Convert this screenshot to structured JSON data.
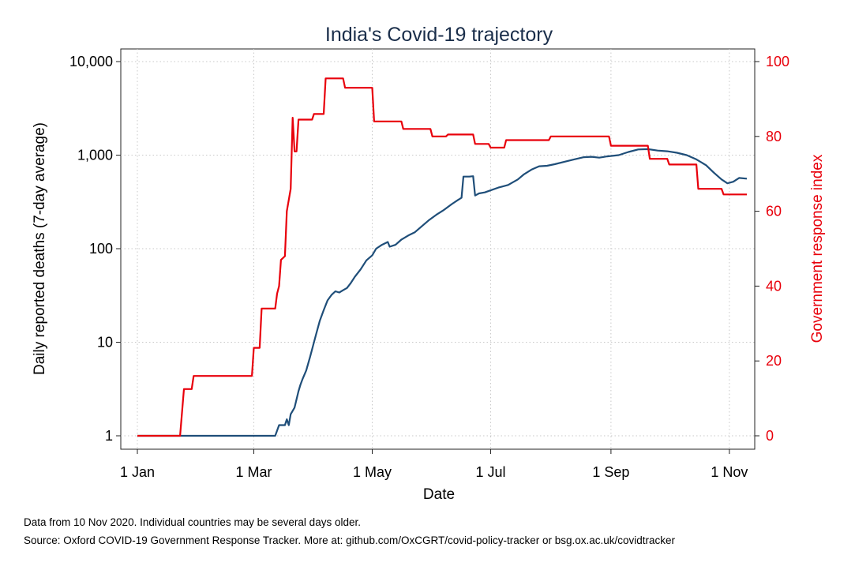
{
  "chart_data": {
    "type": "line",
    "title": "India's Covid-19 trajectory",
    "xlabel": "Date",
    "ylabel": "Daily reported deaths (7-day average)",
    "y2label": "Government response index",
    "x_ticks": [
      "1 Jan",
      "1 Mar",
      "1 May",
      "1 Jul",
      "1 Sep",
      "1 Nov"
    ],
    "x_tick_days": [
      0,
      60,
      121,
      182,
      244,
      305
    ],
    "y_scale": "log",
    "y_ticks": [
      "1",
      "10",
      "100",
      "1,000",
      "10,000"
    ],
    "y_tick_values": [
      1,
      10,
      100,
      1000,
      10000
    ],
    "y2_ticks": [
      "0",
      "20",
      "40",
      "60",
      "80",
      "100"
    ],
    "y2_tick_values": [
      0,
      20,
      40,
      60,
      80,
      100
    ],
    "ylim": [
      1,
      10000
    ],
    "y2lim": [
      0,
      100
    ],
    "xlim": [
      "2020-01-01",
      "2020-11-10"
    ],
    "grid": true,
    "series": [
      {
        "name": "",
        "axis": "left",
        "color": "#1f4e79",
        "points": [
          [
            "2020-01-01",
            1
          ],
          [
            "2020-03-12",
            1
          ],
          [
            "2020-03-14",
            1.3
          ],
          [
            "2020-03-17",
            1.3
          ],
          [
            "2020-03-18",
            1.5
          ],
          [
            "2020-03-19",
            1.3
          ],
          [
            "2020-03-20",
            1.7
          ],
          [
            "2020-03-22",
            2
          ],
          [
            "2020-03-24",
            3
          ],
          [
            "2020-03-25",
            3.5
          ],
          [
            "2020-03-26",
            4
          ],
          [
            "2020-03-28",
            5
          ],
          [
            "2020-03-30",
            7
          ],
          [
            "2020-04-01",
            10
          ],
          [
            "2020-04-02",
            12
          ],
          [
            "2020-04-04",
            17
          ],
          [
            "2020-04-06",
            22
          ],
          [
            "2020-04-08",
            28
          ],
          [
            "2020-04-10",
            32
          ],
          [
            "2020-04-12",
            35
          ],
          [
            "2020-04-14",
            34
          ],
          [
            "2020-04-16",
            36
          ],
          [
            "2020-04-18",
            38
          ],
          [
            "2020-04-20",
            43
          ],
          [
            "2020-04-22",
            50
          ],
          [
            "2020-04-25",
            60
          ],
          [
            "2020-04-28",
            75
          ],
          [
            "2020-05-01",
            85
          ],
          [
            "2020-05-03",
            100
          ],
          [
            "2020-05-06",
            110
          ],
          [
            "2020-05-09",
            118
          ],
          [
            "2020-05-10",
            105
          ],
          [
            "2020-05-13",
            110
          ],
          [
            "2020-05-16",
            125
          ],
          [
            "2020-05-20",
            140
          ],
          [
            "2020-05-23",
            150
          ],
          [
            "2020-05-26",
            170
          ],
          [
            "2020-05-30",
            200
          ],
          [
            "2020-06-03",
            230
          ],
          [
            "2020-06-07",
            260
          ],
          [
            "2020-06-11",
            300
          ],
          [
            "2020-06-14",
            330
          ],
          [
            "2020-06-16",
            350
          ],
          [
            "2020-06-17",
            590
          ],
          [
            "2020-06-20",
            590
          ],
          [
            "2020-06-22",
            595
          ],
          [
            "2020-06-23",
            370
          ],
          [
            "2020-06-25",
            390
          ],
          [
            "2020-06-28",
            400
          ],
          [
            "2020-07-01",
            420
          ],
          [
            "2020-07-05",
            450
          ],
          [
            "2020-07-10",
            480
          ],
          [
            "2020-07-15",
            550
          ],
          [
            "2020-07-18",
            620
          ],
          [
            "2020-07-22",
            700
          ],
          [
            "2020-07-26",
            760
          ],
          [
            "2020-07-30",
            770
          ],
          [
            "2020-08-03",
            800
          ],
          [
            "2020-08-08",
            850
          ],
          [
            "2020-08-13",
            900
          ],
          [
            "2020-08-18",
            950
          ],
          [
            "2020-08-22",
            960
          ],
          [
            "2020-08-26",
            940
          ],
          [
            "2020-08-30",
            970
          ],
          [
            "2020-09-05",
            1000
          ],
          [
            "2020-09-10",
            1080
          ],
          [
            "2020-09-15",
            1150
          ],
          [
            "2020-09-20",
            1160
          ],
          [
            "2020-09-25",
            1120
          ],
          [
            "2020-09-30",
            1100
          ],
          [
            "2020-10-05",
            1060
          ],
          [
            "2020-10-10",
            1000
          ],
          [
            "2020-10-15",
            900
          ],
          [
            "2020-10-20",
            780
          ],
          [
            "2020-10-24",
            650
          ],
          [
            "2020-10-28",
            550
          ],
          [
            "2020-10-31",
            500
          ],
          [
            "2020-11-03",
            520
          ],
          [
            "2020-11-06",
            570
          ],
          [
            "2020-11-10",
            560
          ]
        ]
      },
      {
        "name": "",
        "axis": "right",
        "color": "#e8000b",
        "points": [
          [
            "2020-01-01",
            0
          ],
          [
            "2020-01-23",
            0
          ],
          [
            "2020-01-25",
            12.5
          ],
          [
            "2020-01-29",
            12.5
          ],
          [
            "2020-01-30",
            16
          ],
          [
            "2020-02-29",
            16
          ],
          [
            "2020-03-01",
            23.5
          ],
          [
            "2020-03-04",
            23.5
          ],
          [
            "2020-03-05",
            34
          ],
          [
            "2020-03-12",
            34
          ],
          [
            "2020-03-13",
            38
          ],
          [
            "2020-03-14",
            40
          ],
          [
            "2020-03-15",
            47
          ],
          [
            "2020-03-17",
            48
          ],
          [
            "2020-03-18",
            60
          ],
          [
            "2020-03-20",
            66
          ],
          [
            "2020-03-21",
            85
          ],
          [
            "2020-03-22",
            76
          ],
          [
            "2020-03-23",
            76
          ],
          [
            "2020-03-24",
            84.5
          ],
          [
            "2020-03-31",
            84.5
          ],
          [
            "2020-04-01",
            86
          ],
          [
            "2020-04-06",
            86
          ],
          [
            "2020-04-07",
            95.5
          ],
          [
            "2020-04-16",
            95.5
          ],
          [
            "2020-04-17",
            93
          ],
          [
            "2020-05-01",
            93
          ],
          [
            "2020-05-02",
            84
          ],
          [
            "2020-05-16",
            84
          ],
          [
            "2020-05-17",
            82
          ],
          [
            "2020-05-31",
            82
          ],
          [
            "2020-06-01",
            80
          ],
          [
            "2020-06-08",
            80
          ],
          [
            "2020-06-09",
            80.5
          ],
          [
            "2020-06-22",
            80.5
          ],
          [
            "2020-06-23",
            78
          ],
          [
            "2020-06-30",
            78
          ],
          [
            "2020-07-01",
            77
          ],
          [
            "2020-07-08",
            77
          ],
          [
            "2020-07-09",
            79
          ],
          [
            "2020-07-31",
            79
          ],
          [
            "2020-08-01",
            80
          ],
          [
            "2020-08-31",
            80
          ],
          [
            "2020-09-01",
            77.5
          ],
          [
            "2020-09-20",
            77.5
          ],
          [
            "2020-09-21",
            74
          ],
          [
            "2020-09-30",
            74
          ],
          [
            "2020-10-01",
            72.5
          ],
          [
            "2020-10-15",
            72.5
          ],
          [
            "2020-10-16",
            66
          ],
          [
            "2020-10-28",
            66
          ],
          [
            "2020-10-29",
            64.5
          ],
          [
            "2020-11-10",
            64.5
          ]
        ]
      }
    ]
  },
  "footer": {
    "note": "Data from 10 Nov 2020. Individual countries may be several days older.",
    "source": "Source: Oxford COVID-19 Government Response Tracker. More at: github.com/OxCGRT/covid-policy-tracker or bsg.ox.ac.uk/covidtracker"
  }
}
